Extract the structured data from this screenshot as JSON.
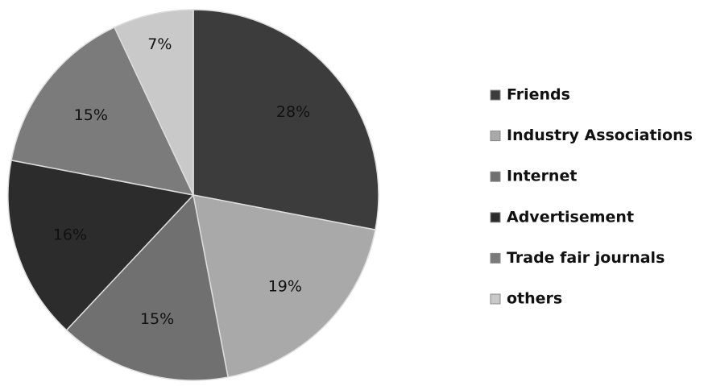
{
  "chart_data": {
    "type": "pie",
    "categories": [
      "Friends",
      "Industry Associations",
      "Internet",
      "Advertisement",
      "Trade fair journals",
      "others"
    ],
    "values": [
      28,
      19,
      15,
      16,
      15,
      7
    ],
    "value_labels": [
      "28%",
      "19%",
      "15%",
      "16%",
      "15%",
      "7%"
    ],
    "colors": [
      "#3c3c3c",
      "#a9a9a9",
      "#707070",
      "#2c2c2c",
      "#7b7b7b",
      "#c9c9c9"
    ],
    "legend": "right"
  }
}
